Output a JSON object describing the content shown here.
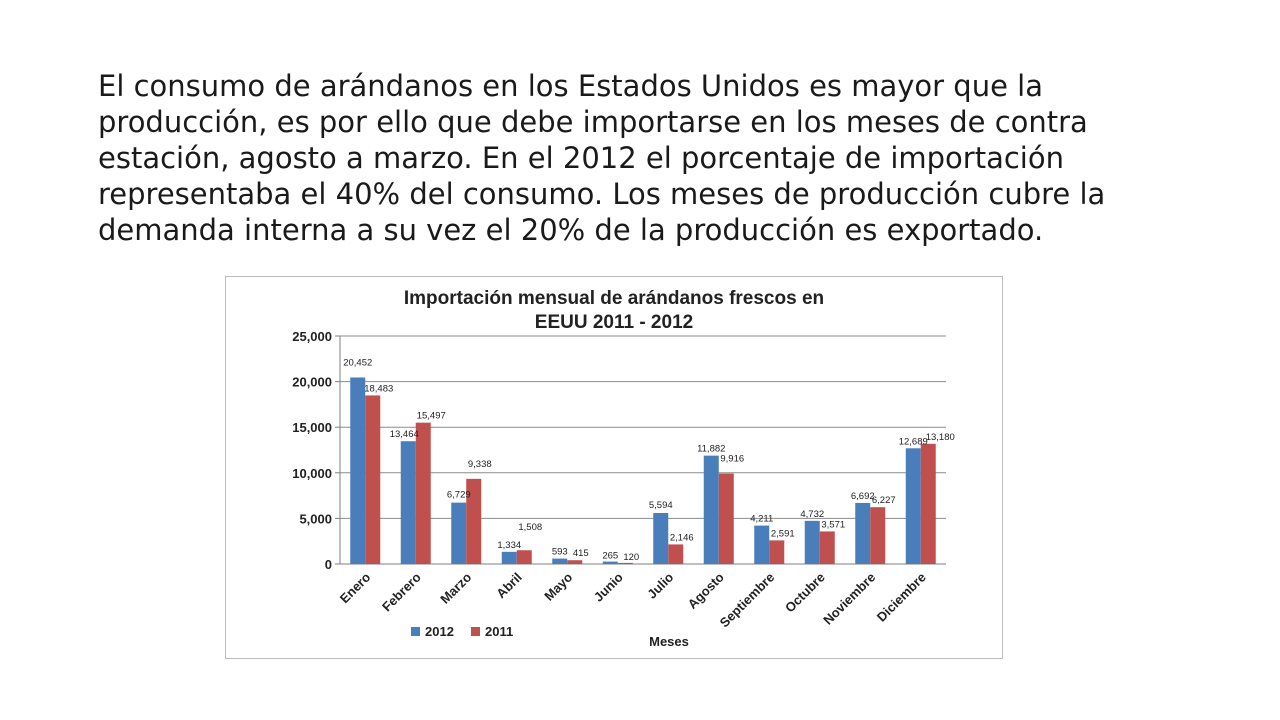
{
  "slide": {
    "paragraph_lines": [
      "El consumo de arándanos en los Estados Unidos es mayor que la",
      "producción, es por ello que debe importarse en los meses de contra",
      "estación, agosto a marzo. En el 2012 el porcentaje de importación",
      "representaba el 40% del consumo. Los meses de producción cubre la",
      "demanda interna a su vez el 20% de la producción es exportado."
    ]
  },
  "chart_data": {
    "type": "bar",
    "title_lines": [
      "Importación mensual de arándanos frescos en",
      "EEUU 2011 - 2012"
    ],
    "xlabel": "Meses",
    "ylabel": "",
    "ylim": [
      0,
      25000
    ],
    "yticks": [
      "0",
      "5,000",
      "10,000",
      "15,000",
      "20,000",
      "25,000"
    ],
    "ytick_values": [
      0,
      5000,
      10000,
      15000,
      20000,
      25000
    ],
    "grid": true,
    "legend_position": "bottom",
    "categories": [
      "Enero",
      "Febrero",
      "Marzo",
      "Abril",
      "Mayo",
      "Junio",
      "Julio",
      "Agosto",
      "Septiembre",
      "Octubre",
      "Noviembre",
      "Diciembre"
    ],
    "series": [
      {
        "name": "2012",
        "color": "#4a7ebb",
        "values": [
          20452,
          13464,
          6729,
          1334,
          593,
          265,
          5594,
          11882,
          4211,
          4732,
          6692,
          12689
        ],
        "labels": [
          "20,452",
          "13,464",
          "6,729",
          "1,334",
          "593",
          "265",
          "5,594",
          "11,882",
          "4,211",
          "4,732",
          "6,692",
          "12,689"
        ]
      },
      {
        "name": "2011",
        "color": "#c0504d",
        "values": [
          18483,
          15497,
          9338,
          1508,
          415,
          120,
          2146,
          9916,
          2591,
          3571,
          6227,
          13180
        ],
        "labels": [
          "18,483",
          "15,497",
          "9,338",
          "1,508",
          "415",
          "120",
          "2,146",
          "9,916",
          "2,591",
          "3,571",
          "6,227",
          "13,180"
        ]
      }
    ]
  }
}
